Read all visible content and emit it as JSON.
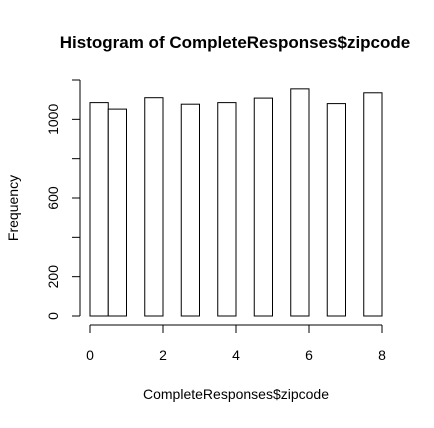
{
  "chart_data": {
    "type": "bar",
    "title": "Histogram of CompleteResponses$zipcode",
    "xlabel": "CompleteResponses$zipcode",
    "ylabel": "Frequency",
    "bin_width": 0.5,
    "bins": [
      {
        "x0": 0.0,
        "x1": 0.5,
        "count": 1085
      },
      {
        "x0": 0.5,
        "x1": 1.0,
        "count": 1052
      },
      {
        "x0": 1.0,
        "x1": 1.5,
        "count": 0
      },
      {
        "x0": 1.5,
        "x1": 2.0,
        "count": 1110
      },
      {
        "x0": 2.0,
        "x1": 2.5,
        "count": 0
      },
      {
        "x0": 2.5,
        "x1": 3.0,
        "count": 1077
      },
      {
        "x0": 3.0,
        "x1": 3.5,
        "count": 0
      },
      {
        "x0": 3.5,
        "x1": 4.0,
        "count": 1085
      },
      {
        "x0": 4.0,
        "x1": 4.5,
        "count": 0
      },
      {
        "x0": 4.5,
        "x1": 5.0,
        "count": 1108
      },
      {
        "x0": 5.0,
        "x1": 5.5,
        "count": 0
      },
      {
        "x0": 5.5,
        "x1": 6.0,
        "count": 1155
      },
      {
        "x0": 6.0,
        "x1": 6.5,
        "count": 0
      },
      {
        "x0": 6.5,
        "x1": 7.0,
        "count": 1080
      },
      {
        "x0": 7.0,
        "x1": 7.5,
        "count": 0
      },
      {
        "x0": 7.5,
        "x1": 8.0,
        "count": 1135
      }
    ],
    "xlim": [
      0,
      8
    ],
    "ylim": [
      0,
      1200
    ],
    "x_ticks": [
      0,
      2,
      4,
      6,
      8
    ],
    "x_tick_labels": [
      "0",
      "2",
      "4",
      "6",
      "8"
    ],
    "y_ticks": [
      0,
      200,
      400,
      600,
      800,
      1000,
      1200
    ],
    "y_tick_labels": [
      "0",
      "200",
      "",
      "600",
      "",
      "1000",
      ""
    ],
    "bar_fill": "#ffffff",
    "bar_stroke": "#000000",
    "grid": false,
    "legend": "none"
  }
}
